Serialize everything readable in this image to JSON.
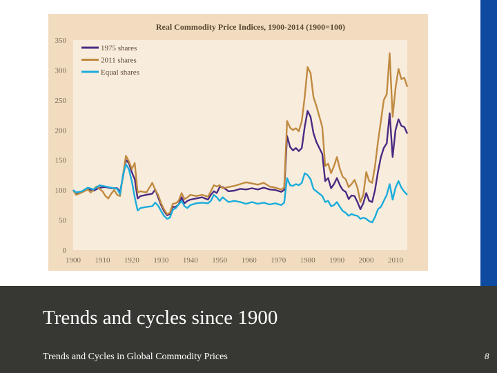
{
  "slide": {
    "title": "Trends and cycles since 1900",
    "footer": "Trends and Cycles in Global Commodity Prices",
    "page_number": "8"
  },
  "colors": {
    "footer_bg": "#373833",
    "accent_bar": "#0d4aa0",
    "chart_outer_bg": "#f2dcc0",
    "chart_plot_bg": "#f8ecdd"
  },
  "chart_data": {
    "type": "line",
    "title": "Real Commodity Price Indices, 1900-2014 (1900=100)",
    "xlabel": "",
    "ylabel": "",
    "xlim": [
      1900,
      2014
    ],
    "ylim": [
      0,
      350
    ],
    "xticks": [
      1900,
      1910,
      1920,
      1930,
      1940,
      1950,
      1960,
      1970,
      1980,
      1990,
      2000,
      2010
    ],
    "yticks": [
      0,
      50,
      100,
      150,
      200,
      250,
      300,
      350
    ],
    "grid": false,
    "legend": "top-left",
    "series": [
      {
        "name": "1975 shares",
        "color": "#4b2a82",
        "points": [
          [
            1900,
            100
          ],
          [
            1901,
            93
          ],
          [
            1903,
            97
          ],
          [
            1905,
            102
          ],
          [
            1907,
            99
          ],
          [
            1909,
            104
          ],
          [
            1911,
            105
          ],
          [
            1913,
            103
          ],
          [
            1915,
            103
          ],
          [
            1916,
            97
          ],
          [
            1917,
            122
          ],
          [
            1918,
            150
          ],
          [
            1919,
            145
          ],
          [
            1920,
            130
          ],
          [
            1921,
            118
          ],
          [
            1922,
            86
          ],
          [
            1923,
            90
          ],
          [
            1925,
            92
          ],
          [
            1927,
            94
          ],
          [
            1928,
            101
          ],
          [
            1929,
            88
          ],
          [
            1930,
            75
          ],
          [
            1931,
            65
          ],
          [
            1932,
            58
          ],
          [
            1933,
            60
          ],
          [
            1934,
            72
          ],
          [
            1935,
            72
          ],
          [
            1936,
            76
          ],
          [
            1937,
            88
          ],
          [
            1938,
            78
          ],
          [
            1939,
            82
          ],
          [
            1940,
            84
          ],
          [
            1942,
            86
          ],
          [
            1944,
            88
          ],
          [
            1946,
            84
          ],
          [
            1947,
            92
          ],
          [
            1948,
            98
          ],
          [
            1949,
            95
          ],
          [
            1950,
            105
          ],
          [
            1951,
            105
          ],
          [
            1953,
            98
          ],
          [
            1955,
            99
          ],
          [
            1957,
            102
          ],
          [
            1959,
            101
          ],
          [
            1961,
            103
          ],
          [
            1963,
            101
          ],
          [
            1965,
            104
          ],
          [
            1967,
            101
          ],
          [
            1969,
            100
          ],
          [
            1971,
            97
          ],
          [
            1972,
            100
          ],
          [
            1973,
            190
          ],
          [
            1974,
            172
          ],
          [
            1975,
            166
          ],
          [
            1976,
            170
          ],
          [
            1977,
            165
          ],
          [
            1978,
            170
          ],
          [
            1979,
            205
          ],
          [
            1980,
            232
          ],
          [
            1981,
            222
          ],
          [
            1982,
            195
          ],
          [
            1983,
            180
          ],
          [
            1985,
            160
          ],
          [
            1986,
            115
          ],
          [
            1987,
            120
          ],
          [
            1988,
            103
          ],
          [
            1989,
            110
          ],
          [
            1990,
            120
          ],
          [
            1991,
            108
          ],
          [
            1992,
            100
          ],
          [
            1993,
            97
          ],
          [
            1994,
            85
          ],
          [
            1995,
            91
          ],
          [
            1996,
            90
          ],
          [
            1997,
            80
          ],
          [
            1998,
            68
          ],
          [
            1999,
            78
          ],
          [
            2000,
            95
          ],
          [
            2001,
            82
          ],
          [
            2002,
            80
          ],
          [
            2003,
            100
          ],
          [
            2004,
            130
          ],
          [
            2005,
            155
          ],
          [
            2006,
            170
          ],
          [
            2007,
            178
          ],
          [
            2008,
            228
          ],
          [
            2009,
            155
          ],
          [
            2010,
            200
          ],
          [
            2011,
            218
          ],
          [
            2012,
            207
          ],
          [
            2013,
            205
          ],
          [
            2014,
            194
          ]
        ]
      },
      {
        "name": "2011 shares",
        "color": "#c08a40",
        "points": [
          [
            1900,
            100
          ],
          [
            1901,
            92
          ],
          [
            1903,
            96
          ],
          [
            1905,
            101
          ],
          [
            1906,
            96
          ],
          [
            1908,
            106
          ],
          [
            1910,
            98
          ],
          [
            1911,
            90
          ],
          [
            1912,
            86
          ],
          [
            1913,
            94
          ],
          [
            1914,
            100
          ],
          [
            1915,
            92
          ],
          [
            1916,
            90
          ],
          [
            1917,
            125
          ],
          [
            1918,
            157
          ],
          [
            1919,
            148
          ],
          [
            1920,
            135
          ],
          [
            1921,
            145
          ],
          [
            1922,
            96
          ],
          [
            1923,
            98
          ],
          [
            1925,
            96
          ],
          [
            1927,
            112
          ],
          [
            1928,
            100
          ],
          [
            1929,
            92
          ],
          [
            1930,
            78
          ],
          [
            1931,
            68
          ],
          [
            1932,
            60
          ],
          [
            1933,
            62
          ],
          [
            1934,
            77
          ],
          [
            1935,
            78
          ],
          [
            1936,
            82
          ],
          [
            1937,
            95
          ],
          [
            1938,
            85
          ],
          [
            1939,
            88
          ],
          [
            1940,
            92
          ],
          [
            1942,
            90
          ],
          [
            1944,
            92
          ],
          [
            1946,
            89
          ],
          [
            1947,
            98
          ],
          [
            1948,
            108
          ],
          [
            1949,
            106
          ],
          [
            1950,
            108
          ],
          [
            1951,
            103
          ],
          [
            1953,
            105
          ],
          [
            1955,
            107
          ],
          [
            1957,
            110
          ],
          [
            1959,
            113
          ],
          [
            1961,
            111
          ],
          [
            1963,
            109
          ],
          [
            1965,
            112
          ],
          [
            1967,
            106
          ],
          [
            1969,
            104
          ],
          [
            1971,
            101
          ],
          [
            1972,
            104
          ],
          [
            1973,
            215
          ],
          [
            1974,
            204
          ],
          [
            1975,
            200
          ],
          [
            1976,
            203
          ],
          [
            1977,
            198
          ],
          [
            1978,
            215
          ],
          [
            1979,
            255
          ],
          [
            1980,
            305
          ],
          [
            1981,
            295
          ],
          [
            1982,
            255
          ],
          [
            1983,
            240
          ],
          [
            1985,
            205
          ],
          [
            1986,
            140
          ],
          [
            1987,
            144
          ],
          [
            1988,
            128
          ],
          [
            1989,
            140
          ],
          [
            1990,
            155
          ],
          [
            1991,
            135
          ],
          [
            1992,
            122
          ],
          [
            1993,
            118
          ],
          [
            1994,
            105
          ],
          [
            1995,
            110
          ],
          [
            1996,
            117
          ],
          [
            1997,
            104
          ],
          [
            1998,
            80
          ],
          [
            1999,
            92
          ],
          [
            2000,
            130
          ],
          [
            2001,
            115
          ],
          [
            2002,
            112
          ],
          [
            2003,
            140
          ],
          [
            2004,
            180
          ],
          [
            2005,
            215
          ],
          [
            2006,
            250
          ],
          [
            2007,
            260
          ],
          [
            2008,
            328
          ],
          [
            2009,
            222
          ],
          [
            2010,
            270
          ],
          [
            2011,
            302
          ],
          [
            2012,
            285
          ],
          [
            2013,
            287
          ],
          [
            2014,
            272
          ]
        ]
      },
      {
        "name": "Equal shares",
        "color": "#1aacdc",
        "points": [
          [
            1900,
            100
          ],
          [
            1901,
            96
          ],
          [
            1903,
            98
          ],
          [
            1905,
            104
          ],
          [
            1907,
            101
          ],
          [
            1909,
            108
          ],
          [
            1911,
            106
          ],
          [
            1913,
            104
          ],
          [
            1915,
            102
          ],
          [
            1916,
            93
          ],
          [
            1917,
            125
          ],
          [
            1918,
            143
          ],
          [
            1919,
            135
          ],
          [
            1920,
            115
          ],
          [
            1921,
            88
          ],
          [
            1922,
            66
          ],
          [
            1923,
            70
          ],
          [
            1925,
            72
          ],
          [
            1927,
            73
          ],
          [
            1928,
            79
          ],
          [
            1929,
            74
          ],
          [
            1930,
            65
          ],
          [
            1931,
            57
          ],
          [
            1932,
            52
          ],
          [
            1933,
            54
          ],
          [
            1934,
            67
          ],
          [
            1935,
            70
          ],
          [
            1936,
            76
          ],
          [
            1937,
            82
          ],
          [
            1938,
            73
          ],
          [
            1939,
            70
          ],
          [
            1940,
            75
          ],
          [
            1942,
            78
          ],
          [
            1944,
            79
          ],
          [
            1946,
            78
          ],
          [
            1947,
            82
          ],
          [
            1948,
            92
          ],
          [
            1949,
            88
          ],
          [
            1950,
            82
          ],
          [
            1951,
            88
          ],
          [
            1953,
            80
          ],
          [
            1955,
            82
          ],
          [
            1957,
            80
          ],
          [
            1959,
            77
          ],
          [
            1961,
            80
          ],
          [
            1963,
            77
          ],
          [
            1965,
            79
          ],
          [
            1967,
            76
          ],
          [
            1969,
            78
          ],
          [
            1971,
            75
          ],
          [
            1972,
            79
          ],
          [
            1973,
            120
          ],
          [
            1974,
            108
          ],
          [
            1975,
            107
          ],
          [
            1976,
            110
          ],
          [
            1977,
            108
          ],
          [
            1978,
            112
          ],
          [
            1979,
            128
          ],
          [
            1980,
            125
          ],
          [
            1981,
            118
          ],
          [
            1982,
            102
          ],
          [
            1983,
            98
          ],
          [
            1985,
            90
          ],
          [
            1986,
            80
          ],
          [
            1987,
            82
          ],
          [
            1988,
            73
          ],
          [
            1989,
            75
          ],
          [
            1990,
            80
          ],
          [
            1991,
            72
          ],
          [
            1992,
            65
          ],
          [
            1993,
            62
          ],
          [
            1994,
            57
          ],
          [
            1995,
            60
          ],
          [
            1996,
            58
          ],
          [
            1997,
            57
          ],
          [
            1998,
            52
          ],
          [
            1999,
            54
          ],
          [
            2000,
            52
          ],
          [
            2001,
            48
          ],
          [
            2002,
            46
          ],
          [
            2003,
            55
          ],
          [
            2004,
            68
          ],
          [
            2005,
            72
          ],
          [
            2006,
            82
          ],
          [
            2007,
            92
          ],
          [
            2008,
            110
          ],
          [
            2009,
            84
          ],
          [
            2010,
            104
          ],
          [
            2011,
            115
          ],
          [
            2012,
            104
          ],
          [
            2013,
            97
          ],
          [
            2014,
            92
          ]
        ]
      }
    ]
  }
}
